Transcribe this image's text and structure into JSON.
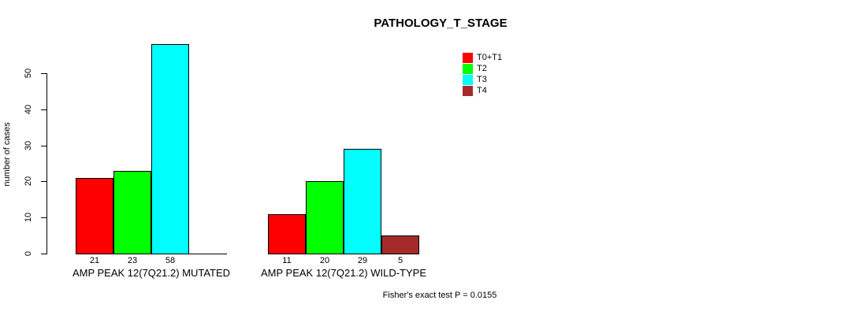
{
  "title": "PATHOLOGY_T_STAGE",
  "y_axis_title": "number of cases",
  "footnote": "Fisher's exact test P = 0.0155",
  "legend": {
    "entries": [
      {
        "label": "T0+T1",
        "color": "#FF0000"
      },
      {
        "label": "T2",
        "color": "#00FF00"
      },
      {
        "label": "T3",
        "color": "#00FFFF"
      },
      {
        "label": "T4",
        "color": "#A52A2A"
      }
    ]
  },
  "chart_data": {
    "type": "bar",
    "title": "PATHOLOGY_T_STAGE",
    "xlabel": "",
    "ylabel": "number of cases",
    "categories": [
      "AMP PEAK 12(7Q21.2) MUTATED",
      "AMP PEAK 12(7Q21.2) WILD-TYPE"
    ],
    "series": [
      {
        "name": "T0+T1",
        "color": "#FF0000",
        "values": [
          21,
          11
        ]
      },
      {
        "name": "T2",
        "color": "#00FF00",
        "values": [
          23,
          20
        ]
      },
      {
        "name": "T3",
        "color": "#00FFFF",
        "values": [
          58,
          29
        ]
      },
      {
        "name": "T4",
        "color": "#A52A2A",
        "values": [
          0,
          5
        ]
      }
    ],
    "bar_value_labels": [
      [
        "21",
        "23",
        "58",
        ""
      ],
      [
        "11",
        "20",
        "29",
        "5"
      ]
    ],
    "yticks": [
      0,
      10,
      20,
      30,
      40,
      50
    ],
    "ylim": [
      0,
      58
    ],
    "grid": false,
    "legend_position": "top-right",
    "annotation": "Fisher's exact test P = 0.0155"
  }
}
